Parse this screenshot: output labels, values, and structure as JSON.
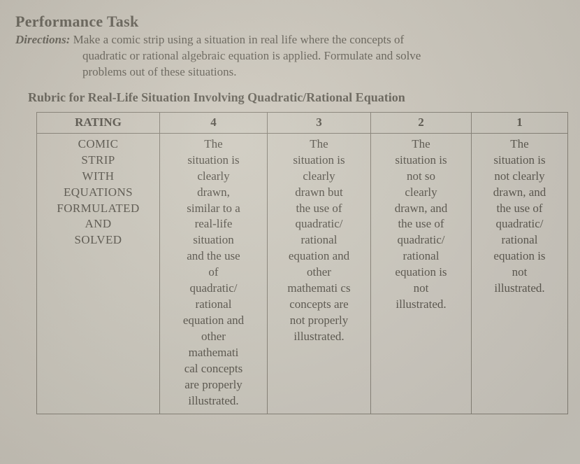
{
  "title": "Performance Task",
  "directions": {
    "label": "Directions:",
    "line1": "Make a comic strip using a situation in real life where the concepts of",
    "line2": "quadratic or rational algebraic equation is applied. Formulate and solve",
    "line3": "problems out of these situations."
  },
  "rubric_title": "Rubric for Real-Life Situation Involving Quadratic/Rational Equation",
  "table": {
    "header": [
      "RATING",
      "4",
      "3",
      "2",
      "1"
    ],
    "row_label": "COMIC STRIP WITH EQUATIONS FORMULATED AND SOLVED",
    "cells": [
      "The situation is clearly drawn, similar to a real-life situation and the use of quadratic/ rational equation and other mathemati cal concepts are properly illustrated.",
      "The situation is clearly drawn but the use of quadratic/ rational equation and other mathemati cs concepts are not properly illustrated.",
      "The situation is not so clearly drawn, and the use of quadratic/ rational equation is not illustrated.",
      "The situation is not clearly drawn, and the use of quadratic/ rational equation is not illustrated."
    ]
  },
  "colors": {
    "text": "#5c584f",
    "border": "#8a857a",
    "bg_start": "#c8c3b8",
    "bg_end": "#d4d0c6"
  }
}
